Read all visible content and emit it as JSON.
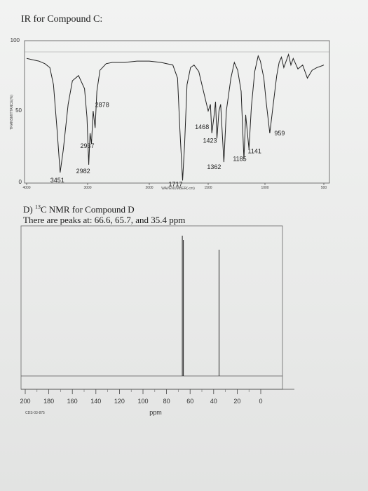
{
  "ir": {
    "heading": "IR for Compound C:",
    "ylabel": "TRANSMITTANCE(%)",
    "xlabel": "WAVENUMBER(-cm)",
    "y_top_tick": "100",
    "y_mid_tick": "50",
    "y_bottom_tick": "0",
    "x_ticks": [
      "4000",
      "3000",
      "2000",
      "1500",
      "1000",
      "500"
    ]
  },
  "nmr": {
    "heading_pre": "D) ",
    "heading_sup": "13",
    "heading_main": "C NMR for Compound D",
    "peaks_text": "There are peaks at: 66.6, 65.7, and 35.4 ppm",
    "xlabel": "ppm",
    "sample_code": "CDS-03-875",
    "x_ticks": [
      "200",
      "180",
      "160",
      "140",
      "120",
      "100",
      "80",
      "60",
      "40",
      "20",
      "0"
    ]
  },
  "chart_data": [
    {
      "type": "line",
      "title": "IR for Compound C:",
      "xlabel": "WAVENUMBER(-cm)",
      "ylabel": "TRANSMITTANCE(%)",
      "xlim": [
        4000,
        500
      ],
      "ylim": [
        0,
        100
      ],
      "x_tick_labels": [
        "4000",
        "3000",
        "2000",
        "1500",
        "1000",
        "500"
      ],
      "y_tick_labels": [
        "100",
        "50",
        "0"
      ],
      "annotations": [
        {
          "label": "3451",
          "x": 3451,
          "y": 8
        },
        {
          "label": "2982",
          "x": 2982,
          "y": 14
        },
        {
          "label": "2937",
          "x": 2937,
          "y": 32
        },
        {
          "label": "2878",
          "x": 2878,
          "y": 57
        },
        {
          "label": "1717",
          "x": 1717,
          "y": 2
        },
        {
          "label": "1468",
          "x": 1468,
          "y": 40
        },
        {
          "label": "1423",
          "x": 1423,
          "y": 34
        },
        {
          "label": "1362",
          "x": 1362,
          "y": 16
        },
        {
          "label": "1185",
          "x": 1185,
          "y": 18
        },
        {
          "label": "1141",
          "x": 1141,
          "y": 26
        },
        {
          "label": "959",
          "x": 959,
          "y": 38
        }
      ],
      "series": [
        {
          "points": [
            [
              4000,
              95
            ],
            [
              3900,
              94
            ],
            [
              3800,
              93
            ],
            [
              3700,
              91
            ],
            [
              3620,
              88
            ],
            [
              3560,
              75
            ],
            [
              3500,
              40
            ],
            [
              3451,
              8
            ],
            [
              3400,
              25
            ],
            [
              3320,
              60
            ],
            [
              3250,
              78
            ],
            [
              3150,
              82
            ],
            [
              3050,
              72
            ],
            [
              3010,
              50
            ],
            [
              2982,
              14
            ],
            [
              2960,
              38
            ],
            [
              2937,
              30
            ],
            [
              2910,
              55
            ],
            [
              2878,
              42
            ],
            [
              2850,
              70
            ],
            [
              2800,
              86
            ],
            [
              2700,
              91
            ],
            [
              2600,
              92
            ],
            [
              2400,
              92
            ],
            [
              2200,
              93
            ],
            [
              2000,
              93
            ],
            [
              1900,
              92
            ],
            [
              1800,
              90
            ],
            [
              1760,
              80
            ],
            [
              1740,
              40
            ],
            [
              1717,
              2
            ],
            [
              1700,
              30
            ],
            [
              1680,
              75
            ],
            [
              1650,
              88
            ],
            [
              1620,
              90
            ],
            [
              1580,
              85
            ],
            [
              1540,
              70
            ],
            [
              1500,
              55
            ],
            [
              1480,
              60
            ],
            [
              1468,
              38
            ],
            [
              1450,
              50
            ],
            [
              1435,
              62
            ],
            [
              1423,
              34
            ],
            [
              1405,
              55
            ],
            [
              1390,
              60
            ],
            [
              1362,
              16
            ],
            [
              1340,
              55
            ],
            [
              1300,
              80
            ],
            [
              1270,
              92
            ],
            [
              1240,
              86
            ],
            [
              1210,
              70
            ],
            [
              1185,
              18
            ],
            [
              1170,
              52
            ],
            [
              1141,
              26
            ],
            [
              1120,
              58
            ],
            [
              1090,
              85
            ],
            [
              1060,
              97
            ],
            [
              1040,
              93
            ],
            [
              1010,
              80
            ],
            [
              990,
              62
            ],
            [
              959,
              38
            ],
            [
              930,
              60
            ],
            [
              900,
              82
            ],
            [
              880,
              92
            ],
            [
              860,
              96
            ],
            [
              840,
              88
            ],
            [
              800,
              98
            ],
            [
              780,
              90
            ],
            [
              760,
              95
            ],
            [
              720,
              87
            ],
            [
              680,
              90
            ],
            [
              640,
              80
            ],
            [
              600,
              86
            ],
            [
              560,
              88
            ],
            [
              530,
              89
            ],
            [
              500,
              90
            ]
          ]
        }
      ]
    },
    {
      "type": "bar",
      "title": "C NMR for Compound D",
      "xlabel": "ppm",
      "xlim": [
        200,
        0
      ],
      "x_tick_labels": [
        "200",
        "180",
        "160",
        "140",
        "120",
        "100",
        "80",
        "60",
        "40",
        "20",
        "0"
      ],
      "categories": [
        "66.6",
        "65.7",
        "35.4"
      ],
      "x": [
        66.6,
        65.7,
        35.4
      ],
      "values": [
        100,
        97,
        90
      ]
    }
  ]
}
